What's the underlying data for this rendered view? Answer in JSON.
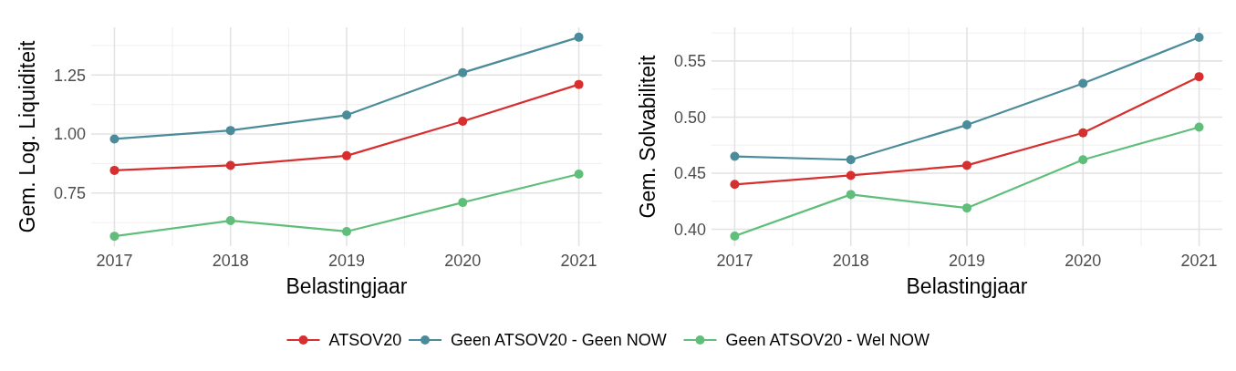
{
  "chart_data": [
    {
      "type": "line",
      "xlabel": "Belastingjaar",
      "ylabel": "Gem. Log. Liquiditeit",
      "x": [
        2017,
        2018,
        2019,
        2020,
        2021
      ],
      "xlim": [
        2016.8,
        2021.2
      ],
      "xticks": [
        2017,
        2018,
        2019,
        2020,
        2021
      ],
      "ylim": [
        0.525,
        1.452
      ],
      "yticks": [
        0.75,
        {
          "value": 1,
          "label": "1.00"
        },
        1.25
      ],
      "grid": true,
      "marker": "circle",
      "legend": "bottom",
      "series": [
        {
          "name": "ATSOV20",
          "color": "#d62f2f",
          "values": [
            0.846,
            0.867,
            0.908,
            1.054,
            1.21
          ]
        },
        {
          "name": "Geen ATSOV20 - Geen NOW",
          "color": "#4b8c9b",
          "values": [
            0.979,
            1.015,
            1.08,
            1.26,
            1.41
          ]
        },
        {
          "name": "Geen ATSOV20 - Wel NOW",
          "color": "#5fbf7a",
          "values": [
            0.567,
            0.633,
            0.587,
            0.71,
            0.83
          ]
        }
      ]
    },
    {
      "type": "line",
      "xlabel": "Belastingjaar",
      "ylabel": "Gem. Solvabiliteit",
      "x": [
        2017,
        2018,
        2019,
        2020,
        2021
      ],
      "xlim": [
        2016.8,
        2021.2
      ],
      "xticks": [
        2017,
        2018,
        2019,
        2020,
        2021
      ],
      "ylim": [
        0.385,
        0.58
      ],
      "yticks": [
        {
          "value": 0.4,
          "label": "0.40"
        },
        0.45,
        {
          "value": 0.5,
          "label": "0.50"
        },
        0.55
      ],
      "grid": true,
      "marker": "circle",
      "series": [
        {
          "color": "#d62f2f",
          "values": [
            0.44,
            0.448,
            0.457,
            0.486,
            0.536
          ]
        },
        {
          "color": "#4b8c9b",
          "values": [
            0.465,
            0.462,
            0.493,
            0.53,
            0.571
          ]
        },
        {
          "color": "#5fbf7a",
          "values": [
            0.394,
            0.431,
            0.419,
            0.462,
            0.491
          ]
        }
      ]
    }
  ]
}
